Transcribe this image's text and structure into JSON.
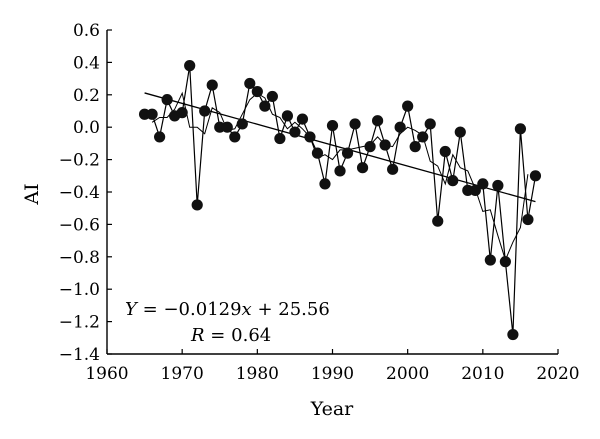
{
  "chart_data": {
    "type": "scatter",
    "xlabel": "Year",
    "ylabel": "AI",
    "xlim": [
      1960,
      2020
    ],
    "ylim": [
      -1.4,
      0.6
    ],
    "x_ticks": [
      "1960",
      "1970",
      "1980",
      "1990",
      "2000",
      "2010",
      "2020"
    ],
    "y_ticks": [
      "0.6",
      "0.4",
      "0.2",
      "0.0",
      "−0.2",
      "−0.4",
      "−0.6",
      "−0.8",
      "−1.0",
      "−1.2",
      "−1.4"
    ],
    "grid": false,
    "series": [
      {
        "kind": "points-and-line",
        "x": [
          1965,
          1966,
          1967,
          1968,
          1969,
          1970,
          1971,
          1972,
          1973,
          1974,
          1975,
          1976,
          1977,
          1978,
          1979,
          1980,
          1981,
          1982,
          1983,
          1984,
          1985,
          1986,
          1987,
          1988,
          1989,
          1990,
          1991,
          1992,
          1993,
          1994,
          1995,
          1996,
          1997,
          1998,
          1999,
          2000,
          2001,
          2002,
          2003,
          2004,
          2005,
          2006,
          2007,
          2008,
          2009,
          2010,
          2011,
          2012,
          2013,
          2014,
          2015,
          2016,
          2017
        ],
        "y": [
          0.08,
          0.08,
          -0.06,
          0.17,
          0.07,
          0.09,
          0.38,
          -0.48,
          0.1,
          0.26,
          0.0,
          0.0,
          -0.06,
          0.02,
          0.27,
          0.22,
          0.13,
          0.19,
          -0.07,
          0.07,
          -0.03,
          0.05,
          -0.06,
          -0.16,
          -0.35,
          0.01,
          -0.27,
          -0.16,
          0.02,
          -0.25,
          -0.12,
          0.04,
          -0.11,
          -0.26,
          0.0,
          0.13,
          -0.12,
          -0.06,
          0.02,
          -0.58,
          -0.15,
          -0.33,
          -0.03,
          -0.39,
          -0.39,
          -0.35,
          -0.82,
          -0.36,
          -0.83,
          -1.28,
          -0.01,
          -0.57,
          -0.3
        ]
      },
      {
        "kind": "moving-average",
        "x": [
          1966,
          1967,
          1968,
          1969,
          1970,
          1971,
          1972,
          1973,
          1974,
          1975,
          1976,
          1977,
          1978,
          1979,
          1980,
          1981,
          1982,
          1983,
          1984,
          1985,
          1986,
          1987,
          1988,
          1989,
          1990,
          1991,
          1992,
          1993,
          1994,
          1995,
          1996,
          1997,
          1998,
          1999,
          2000,
          2001,
          2002,
          2003,
          2004,
          2005,
          2006,
          2007,
          2008,
          2009,
          2010,
          2011,
          2012,
          2013,
          2014,
          2015,
          2016
        ],
        "y": [
          0.03,
          0.06,
          0.06,
          0.11,
          0.21,
          0.0,
          0.0,
          -0.04,
          0.12,
          0.09,
          -0.02,
          -0.01,
          0.08,
          0.17,
          0.21,
          0.18,
          0.08,
          0.06,
          -0.01,
          0.03,
          -0.01,
          -0.06,
          -0.19,
          -0.17,
          -0.2,
          -0.14,
          -0.14,
          -0.13,
          -0.12,
          -0.11,
          -0.06,
          -0.11,
          -0.12,
          -0.04,
          0.0,
          -0.02,
          -0.05,
          -0.21,
          -0.24,
          -0.35,
          -0.17,
          -0.25,
          -0.27,
          -0.38,
          -0.52,
          -0.51,
          -0.67,
          -0.82,
          -0.71,
          -0.62,
          -0.29
        ]
      },
      {
        "kind": "trend-line",
        "slope": -0.0129,
        "intercept": 25.56,
        "x_range": [
          1965,
          2017
        ]
      }
    ],
    "annotations": [
      {
        "id": "equation",
        "text": "Y = −0.0129x + 25.56"
      },
      {
        "id": "r_value",
        "text": "R = 0.64"
      }
    ]
  }
}
